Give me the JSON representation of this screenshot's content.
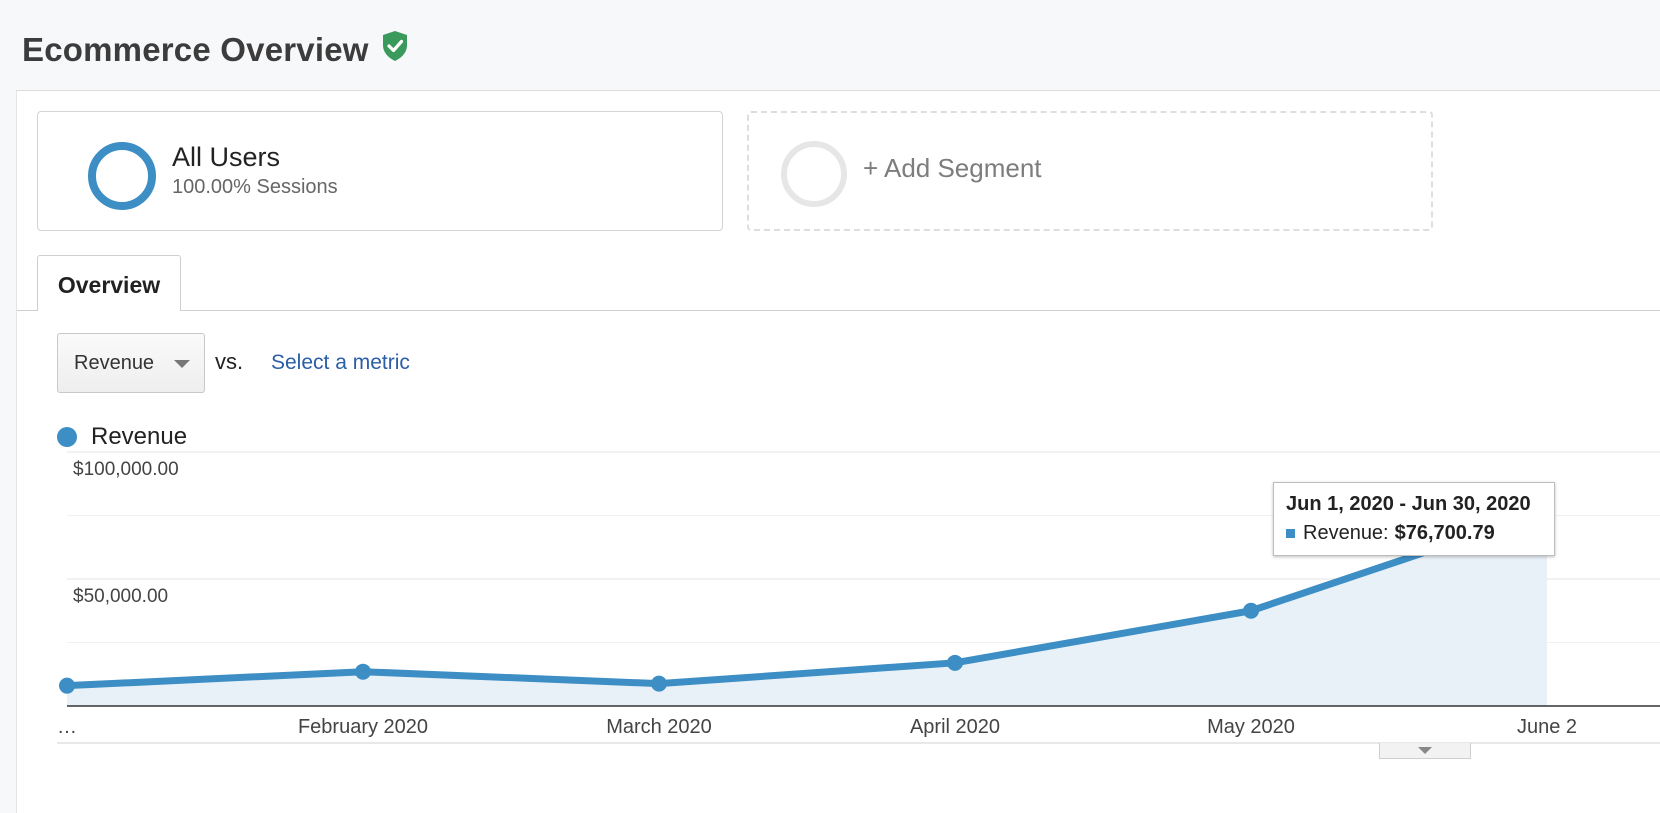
{
  "header": {
    "title": "Ecommerce Overview",
    "shield_icon": "verified-shield-icon"
  },
  "segments": {
    "active": {
      "name": "All Users",
      "sub": "100.00% Sessions",
      "color": "#3d8ec4"
    },
    "add_label": "+ Add Segment"
  },
  "tabs": [
    {
      "label": "Overview"
    }
  ],
  "controls": {
    "metric": "Revenue",
    "vs": "vs.",
    "select_metric": "Select a metric"
  },
  "legend": {
    "label": "Revenue",
    "color": "#3d8ec4"
  },
  "tooltip": {
    "range": "Jun 1, 2020 - Jun 30, 2020",
    "label": "Revenue:",
    "value": "$76,700.79"
  },
  "chart_data": {
    "type": "area",
    "x": [
      "…",
      "February 2020",
      "March 2020",
      "April 2020",
      "May 2020",
      "June 2"
    ],
    "series": [
      {
        "name": "Revenue",
        "color": "#3d8ec4",
        "values": [
          8000,
          13500,
          8800,
          17000,
          37500,
          76700.79
        ]
      }
    ],
    "ylim": [
      0,
      100000
    ],
    "yticks": [
      {
        "value": 100000,
        "label": "$100,000.00"
      },
      {
        "value": 50000,
        "label": "$50,000.00"
      }
    ],
    "gridlines": [
      100000,
      75000,
      50000,
      25000
    ],
    "grid": true,
    "legend_position": "top-left"
  }
}
